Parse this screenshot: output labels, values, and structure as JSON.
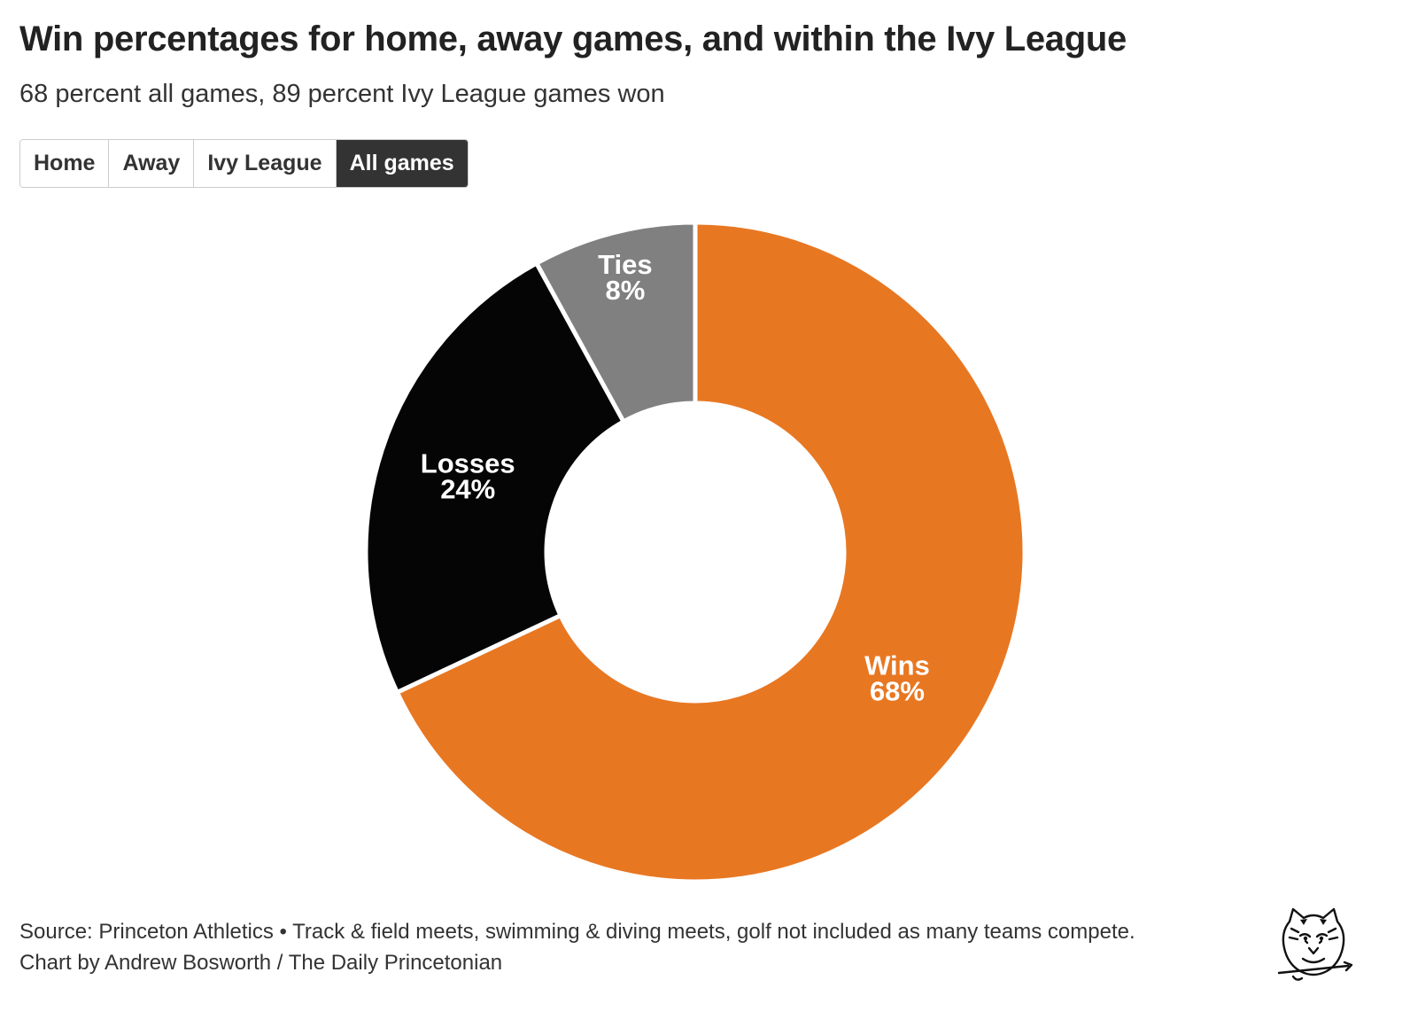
{
  "header": {
    "title": "Win percentages for home, away games, and within the Ivy League",
    "subtitle": "68 percent all games, 89 percent Ivy League games won"
  },
  "controls": {
    "buttons": [
      {
        "label": "Home",
        "selected": false
      },
      {
        "label": "Away",
        "selected": false
      },
      {
        "label": "Ivy League",
        "selected": false
      },
      {
        "label": "All games",
        "selected": true
      }
    ]
  },
  "chart_data": {
    "type": "pie",
    "variant": "donut",
    "title": "Win percentages for home, away games, and within the Ivy League",
    "subtitle": "68 percent all games, 89 percent Ivy League games won",
    "slices": [
      {
        "name": "Wins",
        "value": 68,
        "label": "68%",
        "color": "#E87722"
      },
      {
        "name": "Losses",
        "value": 24,
        "label": "24%",
        "color": "#050505"
      },
      {
        "name": "Ties",
        "value": 8,
        "label": "8%",
        "color": "#808080"
      }
    ],
    "start": "12 o'clock",
    "direction": "clockwise",
    "legend": "none",
    "labels": "on-slice"
  },
  "footer": {
    "source": "Source: Princeton Athletics • Track & field meets, swimming & diving meets, golf not included as many teams compete.",
    "credit": "Chart by Andrew Bosworth / The Daily Princetonian"
  },
  "logo": {
    "icon": "tiger-head-logo"
  }
}
